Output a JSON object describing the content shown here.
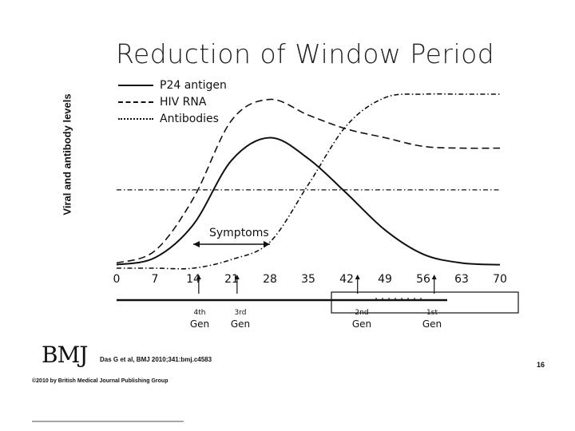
{
  "slide": {
    "title": "Reduction of Window Period",
    "bmj_logo": "BMJ",
    "citation": "Das G et al, BMJ 2010;341:bmj.c4583",
    "copyright": "©2010 by British Medical Journal Publishing Group",
    "slide_number": "16"
  },
  "chart_data": {
    "type": "line",
    "title": "Reduction of Window Period",
    "xlabel": "",
    "ylabel": "Viral and antibody levels",
    "x": [
      0,
      7,
      14,
      21,
      28,
      35,
      42,
      49,
      56,
      63,
      70
    ],
    "xlim": [
      0,
      70
    ],
    "ylim": [
      0,
      100
    ],
    "tick_labels": [
      "0",
      "7",
      "14",
      "21",
      "28",
      "35",
      "42",
      "49",
      "56",
      "63",
      "70"
    ],
    "grid": false,
    "legend_position": "top-left",
    "series": [
      {
        "name": "P24 antigen",
        "style": "solid",
        "x": [
          0,
          7,
          14,
          21,
          28,
          35,
          42,
          49,
          56,
          63,
          70
        ],
        "values": [
          2,
          6,
          25,
          62,
          75,
          63,
          43,
          22,
          8,
          3,
          2
        ]
      },
      {
        "name": "HIV RNA",
        "style": "dashed",
        "x": [
          0,
          7,
          14,
          21,
          28,
          35,
          42,
          49,
          56,
          63,
          70
        ],
        "values": [
          3,
          10,
          40,
          85,
          97,
          88,
          80,
          75,
          70,
          69,
          69
        ]
      },
      {
        "name": "Antibodies",
        "style": "dashdot",
        "x": [
          0,
          7,
          14,
          21,
          28,
          35,
          42,
          49,
          56,
          63,
          70
        ],
        "values": [
          0,
          0,
          0,
          5,
          15,
          48,
          82,
          98,
          100,
          100,
          100
        ]
      }
    ],
    "reference_line": {
      "style": "dashdot",
      "value": 45
    },
    "annotations": [
      {
        "text": "Symptoms",
        "x_start": 14,
        "x_end": 28
      }
    ],
    "generations": [
      {
        "ordinal": "4th",
        "label": "Gen",
        "day": 15
      },
      {
        "ordinal": "3rd",
        "label": "Gen",
        "day": 22
      },
      {
        "ordinal": "2nd",
        "label": "Gen",
        "day": 44
      },
      {
        "ordinal": "1st",
        "label": "Gen",
        "day": 58
      }
    ]
  }
}
